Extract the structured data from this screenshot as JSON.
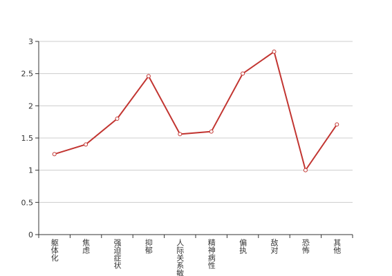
{
  "chart_data": {
    "type": "line",
    "categories": [
      "躯体化",
      "焦虑",
      "强迫症状",
      "抑郁",
      "人际关系敏感",
      "精神病性",
      "偏执",
      "敌对",
      "恐怖",
      "其他"
    ],
    "series": [
      {
        "color": "#c23531",
        "values": [
          1.25,
          1.4,
          1.8,
          2.46,
          1.56,
          1.6,
          2.5,
          2.84,
          1.0,
          1.71
        ]
      }
    ],
    "ylim": [
      0,
      3
    ],
    "yticks": [
      0,
      0.5,
      1,
      1.5,
      2,
      2.5,
      3
    ],
    "grid": true
  }
}
